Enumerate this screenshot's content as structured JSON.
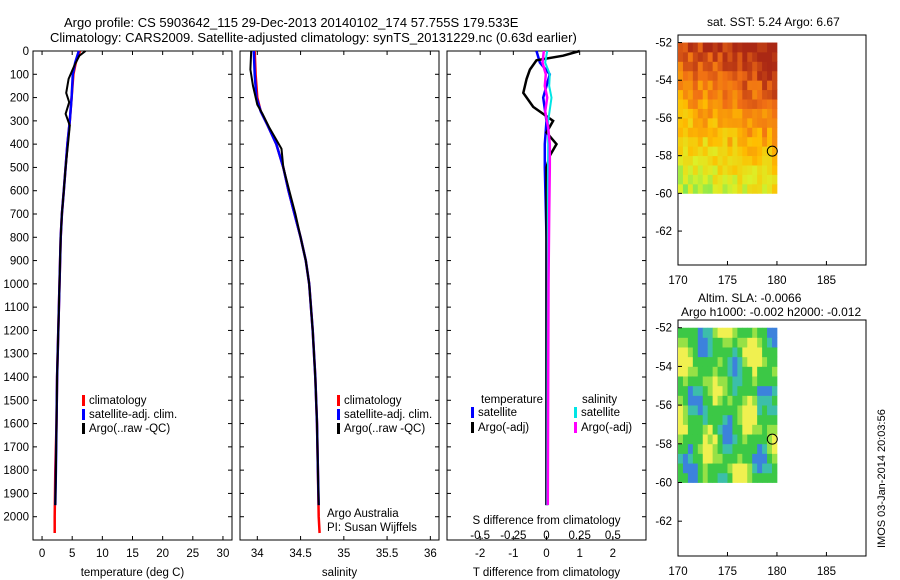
{
  "header": {
    "title_line1": "Argo profile: CS 5903642_115 29-Dec-2013 20140102_174 57.755S 179.533E",
    "title_line2": "Climatology: CARS2009. Satellite-adjusted climatology: synTS_20131229.nc (0.63d earlier)"
  },
  "colors": {
    "climatology": "#ff0000",
    "satellite": "#0000ff",
    "argo": "#000000",
    "satellite_salinity": "#00e5e5",
    "argo_salinity": "#ff00ff"
  },
  "chart_data": [
    {
      "type": "line",
      "id": "temperature",
      "xlabel": "temperature (deg C)",
      "ylabel": "",
      "xlim": [
        -1.5,
        31.5
      ],
      "ylim": [
        2100,
        0
      ],
      "xticks": [
        "0",
        "5",
        "10",
        "15",
        "20",
        "25",
        "30"
      ],
      "yticks": [
        "0",
        "100",
        "200",
        "300",
        "400",
        "500",
        "600",
        "700",
        "800",
        "900",
        "1000",
        "1100",
        "1200",
        "1300",
        "1400",
        "1500",
        "1600",
        "1700",
        "1800",
        "1900",
        "2000"
      ],
      "legend": [
        "climatology",
        "satellite-adj. clim.",
        "Argo(..raw -QC)"
      ],
      "series": [
        {
          "name": "climatology",
          "color": "#ff0000",
          "points": [
            [
              6.3,
              0
            ],
            [
              5.6,
              50
            ],
            [
              5.2,
              100
            ],
            [
              4.9,
              200
            ],
            [
              4.6,
              300
            ],
            [
              4.2,
              400
            ],
            [
              3.9,
              500
            ],
            [
              3.6,
              600
            ],
            [
              3.3,
              700
            ],
            [
              3.1,
              800
            ],
            [
              2.9,
              1000
            ],
            [
              2.7,
              1200
            ],
            [
              2.5,
              1400
            ],
            [
              2.4,
              1600
            ],
            [
              2.2,
              1800
            ],
            [
              2.1,
              2000
            ],
            [
              2.1,
              2070
            ]
          ]
        },
        {
          "name": "satellite-adj. clim.",
          "color": "#0000ff",
          "points": [
            [
              6.1,
              0
            ],
            [
              5.5,
              50
            ],
            [
              5.1,
              100
            ],
            [
              4.9,
              200
            ],
            [
              4.6,
              300
            ],
            [
              4.2,
              400
            ],
            [
              3.9,
              500
            ],
            [
              3.6,
              600
            ],
            [
              3.3,
              700
            ],
            [
              3.1,
              800
            ],
            [
              2.9,
              1000
            ],
            [
              2.7,
              1200
            ],
            [
              2.5,
              1400
            ],
            [
              2.4,
              1600
            ],
            [
              2.3,
              1800
            ],
            [
              2.2,
              1950
            ]
          ]
        },
        {
          "name": "Argo(..raw -QC)",
          "color": "#000000",
          "points": [
            [
              7.2,
              0
            ],
            [
              6.2,
              20
            ],
            [
              5.4,
              60
            ],
            [
              4.4,
              120
            ],
            [
              4.0,
              180
            ],
            [
              4.5,
              220
            ],
            [
              3.9,
              270
            ],
            [
              4.6,
              320
            ],
            [
              4.3,
              400
            ],
            [
              3.9,
              500
            ],
            [
              3.6,
              600
            ],
            [
              3.3,
              700
            ],
            [
              3.1,
              800
            ],
            [
              2.9,
              1000
            ],
            [
              2.7,
              1200
            ],
            [
              2.5,
              1400
            ],
            [
              2.4,
              1600
            ],
            [
              2.3,
              1800
            ],
            [
              2.2,
              1950
            ]
          ]
        }
      ]
    },
    {
      "type": "line",
      "id": "salinity",
      "xlabel": "salinity",
      "xlim": [
        33.8,
        36.1
      ],
      "ylim": [
        2100,
        0
      ],
      "xticks": [
        "34",
        "34.5",
        "35",
        "35.5",
        "36"
      ],
      "legend": [
        "climatology",
        "satellite-adj. clim.",
        "Argo(..raw -QC)"
      ],
      "annotation": [
        "Argo Australia",
        "PI: Susan Wijffels"
      ],
      "series": [
        {
          "name": "climatology",
          "color": "#ff0000",
          "points": [
            [
              33.97,
              0
            ],
            [
              33.98,
              100
            ],
            [
              34.0,
              200
            ],
            [
              34.04,
              260
            ],
            [
              34.12,
              320
            ],
            [
              34.22,
              400
            ],
            [
              34.3,
              500
            ],
            [
              34.36,
              600
            ],
            [
              34.43,
              700
            ],
            [
              34.5,
              800
            ],
            [
              34.56,
              900
            ],
            [
              34.6,
              1000
            ],
            [
              34.64,
              1200
            ],
            [
              34.67,
              1400
            ],
            [
              34.69,
              1600
            ],
            [
              34.7,
              1800
            ],
            [
              34.71,
              2000
            ],
            [
              34.72,
              2070
            ]
          ]
        },
        {
          "name": "satellite-adj. clim.",
          "color": "#0000ff",
          "points": [
            [
              33.96,
              0
            ],
            [
              33.97,
              100
            ],
            [
              33.99,
              200
            ],
            [
              34.04,
              260
            ],
            [
              34.12,
              320
            ],
            [
              34.22,
              400
            ],
            [
              34.3,
              500
            ],
            [
              34.36,
              600
            ],
            [
              34.43,
              700
            ],
            [
              34.5,
              800
            ],
            [
              34.56,
              900
            ],
            [
              34.6,
              1000
            ],
            [
              34.64,
              1200
            ],
            [
              34.67,
              1400
            ],
            [
              34.69,
              1600
            ],
            [
              34.7,
              1800
            ],
            [
              34.71,
              1950
            ]
          ]
        },
        {
          "name": "Argo(..raw -QC)",
          "color": "#000000",
          "points": [
            [
              33.93,
              0
            ],
            [
              33.92,
              80
            ],
            [
              33.95,
              150
            ],
            [
              34.0,
              230
            ],
            [
              34.06,
              270
            ],
            [
              34.14,
              330
            ],
            [
              34.28,
              420
            ],
            [
              34.3,
              500
            ],
            [
              34.37,
              600
            ],
            [
              34.44,
              700
            ],
            [
              34.5,
              800
            ],
            [
              34.56,
              900
            ],
            [
              34.6,
              1000
            ],
            [
              34.64,
              1200
            ],
            [
              34.67,
              1400
            ],
            [
              34.69,
              1600
            ],
            [
              34.7,
              1800
            ],
            [
              34.71,
              1950
            ]
          ]
        }
      ]
    },
    {
      "type": "line",
      "id": "difference",
      "xlabel": "T difference from climatology",
      "secondary_xlabel": "S difference from climatology",
      "xlim": [
        -3.0,
        3.0
      ],
      "ylim": [
        2100,
        0
      ],
      "xticks": [
        "-2",
        "-1",
        "0",
        "1",
        "2"
      ],
      "secondary_xticks": [
        "-0.5",
        "-0.25",
        "0",
        "0.25",
        "0.5"
      ],
      "legend_temperature_title": "temperature",
      "legend_salinity_title": "salinity",
      "legend": [
        "satellite",
        "Argo(-adj)",
        "satellite",
        "Argo(-adj)"
      ],
      "series": [
        {
          "name": "satellite",
          "group": "temperature",
          "color": "#0000ff",
          "points": [
            [
              -0.3,
              0
            ],
            [
              -0.2,
              50
            ],
            [
              0.1,
              100
            ],
            [
              0.0,
              150
            ],
            [
              -0.1,
              200
            ],
            [
              0.0,
              300
            ],
            [
              -0.05,
              400
            ],
            [
              -0.05,
              500
            ],
            [
              0.0,
              800
            ],
            [
              0.0,
              1200
            ],
            [
              0.0,
              1600
            ],
            [
              0.0,
              1950
            ]
          ]
        },
        {
          "name": "Argo(-adj)",
          "group": "temperature",
          "color": "#000000",
          "points": [
            [
              1.0,
              0
            ],
            [
              0.5,
              20
            ],
            [
              -0.3,
              40
            ],
            [
              -0.5,
              80
            ],
            [
              -0.6,
              120
            ],
            [
              -0.7,
              180
            ],
            [
              -0.4,
              240
            ],
            [
              0.2,
              300
            ],
            [
              0.0,
              350
            ],
            [
              0.3,
              400
            ],
            [
              0.1,
              450
            ],
            [
              0.0,
              500
            ],
            [
              0.0,
              800
            ],
            [
              0.0,
              1200
            ],
            [
              0.0,
              1600
            ],
            [
              0.0,
              1950
            ]
          ]
        },
        {
          "name": "satellite",
          "group": "salinity",
          "color": "#00e5e5",
          "points": [
            [
              0.02,
              0
            ],
            [
              -0.04,
              50
            ],
            [
              0.1,
              100
            ],
            [
              0.08,
              150
            ],
            [
              0.15,
              200
            ],
            [
              0.05,
              300
            ],
            [
              0.05,
              400
            ],
            [
              0.04,
              600
            ],
            [
              0.04,
              1000
            ],
            [
              0.03,
              1400
            ],
            [
              0.02,
              1950
            ]
          ]
        },
        {
          "name": "Argo(-adj)",
          "group": "salinity",
          "color": "#ff00ff",
          "points": [
            [
              -0.08,
              0
            ],
            [
              -0.12,
              50
            ],
            [
              -0.02,
              100
            ],
            [
              -0.05,
              150
            ],
            [
              0.02,
              200
            ],
            [
              -0.04,
              260
            ],
            [
              0.05,
              330
            ],
            [
              0.1,
              400
            ],
            [
              0.1,
              500
            ],
            [
              0.08,
              700
            ],
            [
              0.06,
              1000
            ],
            [
              0.05,
              1400
            ],
            [
              0.04,
              1950
            ]
          ]
        }
      ]
    },
    {
      "type": "heatmap",
      "id": "sst-map",
      "title": "sat. SST: 5.24  Argo: 6.67",
      "xlim": [
        170,
        189
      ],
      "ylim": [
        -63.8,
        -51.6
      ],
      "data_extent": {
        "lon": [
          170,
          180
        ],
        "lat": [
          -60,
          -52
        ]
      },
      "xticks": [
        "170",
        "175",
        "180",
        "185"
      ],
      "yticks": [
        "-52",
        "-54",
        "-56",
        "-58",
        "-60",
        "-62"
      ],
      "marker": {
        "lon": 179.53,
        "lat": -57.76
      }
    },
    {
      "type": "heatmap",
      "id": "sla-map",
      "title": "Altim. SLA: -0.0066",
      "subtitle": "Argo h1000: -0.002  h2000: -0.012",
      "xlim": [
        170,
        189
      ],
      "ylim": [
        -63.8,
        -51.6
      ],
      "data_extent": {
        "lon": [
          170,
          180
        ],
        "lat": [
          -60,
          -52
        ]
      },
      "xticks": [
        "170",
        "175",
        "180",
        "185"
      ],
      "yticks": [
        "-52",
        "-54",
        "-56",
        "-58",
        "-60",
        "-62"
      ],
      "marker": {
        "lon": 179.53,
        "lat": -57.76
      }
    }
  ],
  "footer": {
    "timestamp": "IMOS 03-Jan-2014 20:03:56"
  }
}
